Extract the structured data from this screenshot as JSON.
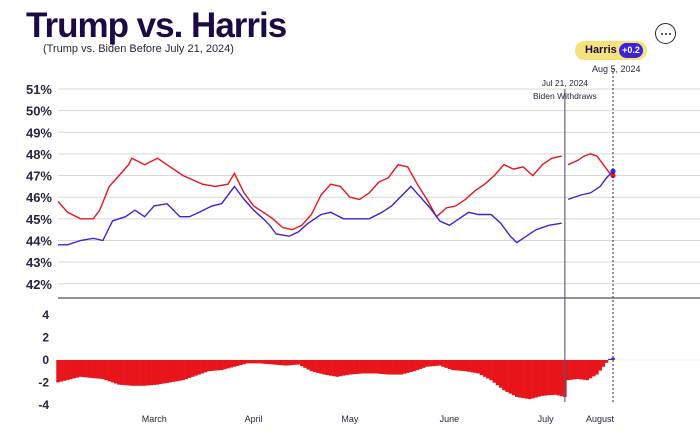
{
  "header": {
    "title": "Trump vs. Harris",
    "subtitle": "(Trump vs. Biden Before July 21, 2024)"
  },
  "badge": {
    "label": "Harris",
    "value": "+0.2",
    "date": "Aug 5, 2024"
  },
  "annotation": {
    "date": "Jul 21, 2024",
    "text": "Biden Withdraws"
  },
  "colors": {
    "trump": "#e8151b",
    "harris": "#3d22d8",
    "title": "#1b0a45",
    "badge_bg": "#f4e27a"
  },
  "icons": {
    "menu": "more-options-icon"
  },
  "chart_data": [
    {
      "type": "line",
      "ylim": [
        41.5,
        51
      ],
      "yticks": [
        "51%",
        "50%",
        "49%",
        "48%",
        "47%",
        "46%",
        "45%",
        "44%",
        "43%",
        "42%"
      ],
      "grid": true,
      "x_labels": [
        "March",
        "April",
        "May",
        "June",
        "July",
        "August"
      ],
      "x_start": "2024-02-14",
      "x_end": "2024-08-05",
      "series": [
        {
          "name": "Trump",
          "color": "#e8151b",
          "points": [
            [
              "2024-02-14",
              45.8
            ],
            [
              "2024-02-17",
              45.3
            ],
            [
              "2024-02-21",
              45.0
            ],
            [
              "2024-02-25",
              45.0
            ],
            [
              "2024-02-27",
              45.4
            ],
            [
              "2024-03-01",
              46.5
            ],
            [
              "2024-03-04",
              47.0
            ],
            [
              "2024-03-07",
              47.5
            ],
            [
              "2024-03-08",
              47.8
            ],
            [
              "2024-03-12",
              47.5
            ],
            [
              "2024-03-16",
              47.8
            ],
            [
              "2024-03-20",
              47.4
            ],
            [
              "2024-03-24",
              47.0
            ],
            [
              "2024-03-27",
              46.8
            ],
            [
              "2024-03-30",
              46.6
            ],
            [
              "2024-04-03",
              46.5
            ],
            [
              "2024-04-07",
              46.6
            ],
            [
              "2024-04-09",
              47.1
            ],
            [
              "2024-04-12",
              46.2
            ],
            [
              "2024-04-15",
              45.6
            ],
            [
              "2024-04-18",
              45.3
            ],
            [
              "2024-04-21",
              45.0
            ],
            [
              "2024-04-24",
              44.6
            ],
            [
              "2024-04-27",
              44.5
            ],
            [
              "2024-04-30",
              44.7
            ],
            [
              "2024-05-03",
              45.2
            ],
            [
              "2024-05-06",
              46.1
            ],
            [
              "2024-05-09",
              46.6
            ],
            [
              "2024-05-12",
              46.5
            ],
            [
              "2024-05-15",
              46.0
            ],
            [
              "2024-05-18",
              45.9
            ],
            [
              "2024-05-21",
              46.2
            ],
            [
              "2024-05-24",
              46.7
            ],
            [
              "2024-05-27",
              46.9
            ],
            [
              "2024-05-30",
              47.5
            ],
            [
              "2024-06-02",
              47.4
            ],
            [
              "2024-06-05",
              46.6
            ],
            [
              "2024-06-08",
              45.9
            ],
            [
              "2024-06-11",
              45.1
            ],
            [
              "2024-06-14",
              45.5
            ],
            [
              "2024-06-17",
              45.6
            ],
            [
              "2024-06-20",
              45.9
            ],
            [
              "2024-06-23",
              46.3
            ],
            [
              "2024-06-26",
              46.6
            ],
            [
              "2024-06-29",
              47.0
            ],
            [
              "2024-07-02",
              47.5
            ],
            [
              "2024-07-05",
              47.3
            ],
            [
              "2024-07-08",
              47.4
            ],
            [
              "2024-07-11",
              47.0
            ],
            [
              "2024-07-14",
              47.5
            ],
            [
              "2024-07-17",
              47.8
            ],
            [
              "2024-07-20",
              47.9
            ],
            [
              "2024-07-22",
              47.5
            ],
            [
              "2024-07-25",
              47.7
            ],
            [
              "2024-07-27",
              47.9
            ],
            [
              "2024-07-29",
              48.0
            ],
            [
              "2024-07-31",
              47.9
            ],
            [
              "2024-08-02",
              47.5
            ],
            [
              "2024-08-04",
              47.1
            ],
            [
              "2024-08-05",
              47.0
            ]
          ]
        },
        {
          "name": "Harris",
          "color": "#3d22d8",
          "points": [
            [
              "2024-02-14",
              43.8
            ],
            [
              "2024-02-17",
              43.8
            ],
            [
              "2024-02-21",
              44.0
            ],
            [
              "2024-02-25",
              44.1
            ],
            [
              "2024-02-28",
              44.0
            ],
            [
              "2024-03-02",
              44.9
            ],
            [
              "2024-03-06",
              45.1
            ],
            [
              "2024-03-09",
              45.4
            ],
            [
              "2024-03-12",
              45.1
            ],
            [
              "2024-03-15",
              45.6
            ],
            [
              "2024-03-19",
              45.7
            ],
            [
              "2024-03-23",
              45.1
            ],
            [
              "2024-03-26",
              45.1
            ],
            [
              "2024-03-29",
              45.3
            ],
            [
              "2024-04-02",
              45.6
            ],
            [
              "2024-04-05",
              45.7
            ],
            [
              "2024-04-09",
              46.5
            ],
            [
              "2024-04-12",
              45.9
            ],
            [
              "2024-04-15",
              45.4
            ],
            [
              "2024-04-18",
              45.0
            ],
            [
              "2024-04-20",
              44.7
            ],
            [
              "2024-04-22",
              44.3
            ],
            [
              "2024-04-26",
              44.2
            ],
            [
              "2024-04-29",
              44.4
            ],
            [
              "2024-05-02",
              44.8
            ],
            [
              "2024-05-06",
              45.2
            ],
            [
              "2024-05-09",
              45.3
            ],
            [
              "2024-05-13",
              45.0
            ],
            [
              "2024-05-17",
              45.0
            ],
            [
              "2024-05-21",
              45.0
            ],
            [
              "2024-05-25",
              45.3
            ],
            [
              "2024-05-28",
              45.6
            ],
            [
              "2024-06-01",
              46.2
            ],
            [
              "2024-06-03",
              46.5
            ],
            [
              "2024-06-06",
              46.0
            ],
            [
              "2024-06-09",
              45.5
            ],
            [
              "2024-06-12",
              44.9
            ],
            [
              "2024-06-15",
              44.7
            ],
            [
              "2024-06-18",
              45.0
            ],
            [
              "2024-06-21",
              45.3
            ],
            [
              "2024-06-24",
              45.2
            ],
            [
              "2024-06-28",
              45.2
            ],
            [
              "2024-07-01",
              44.8
            ],
            [
              "2024-07-04",
              44.2
            ],
            [
              "2024-07-06",
              43.9
            ],
            [
              "2024-07-09",
              44.2
            ],
            [
              "2024-07-12",
              44.5
            ],
            [
              "2024-07-16",
              44.7
            ],
            [
              "2024-07-20",
              44.8
            ],
            [
              "2024-07-22",
              45.9
            ],
            [
              "2024-07-26",
              46.1
            ],
            [
              "2024-07-29",
              46.2
            ],
            [
              "2024-08-01",
              46.5
            ],
            [
              "2024-08-03",
              46.9
            ],
            [
              "2024-08-05",
              47.2
            ]
          ]
        }
      ]
    },
    {
      "type": "bar",
      "ylim": [
        -4,
        5
      ],
      "yticks": [
        "4",
        "2",
        "0",
        "-2",
        "-4"
      ],
      "series": [
        {
          "name": "Harris margin",
          "points": [
            [
              "2024-02-14",
              -2.0
            ],
            [
              "2024-02-21",
              -1.5
            ],
            [
              "2024-02-28",
              -1.7
            ],
            [
              "2024-03-04",
              -2.2
            ],
            [
              "2024-03-08",
              -2.3
            ],
            [
              "2024-03-12",
              -2.3
            ],
            [
              "2024-03-16",
              -2.2
            ],
            [
              "2024-03-20",
              -2.0
            ],
            [
              "2024-03-24",
              -1.8
            ],
            [
              "2024-03-28",
              -1.4
            ],
            [
              "2024-04-01",
              -1.0
            ],
            [
              "2024-04-05",
              -0.9
            ],
            [
              "2024-04-09",
              -0.6
            ],
            [
              "2024-04-13",
              -0.3
            ],
            [
              "2024-04-17",
              -0.3
            ],
            [
              "2024-04-21",
              -0.4
            ],
            [
              "2024-04-25",
              -0.5
            ],
            [
              "2024-04-29",
              -0.4
            ],
            [
              "2024-05-03",
              -1.0
            ],
            [
              "2024-05-07",
              -1.3
            ],
            [
              "2024-05-11",
              -1.5
            ],
            [
              "2024-05-15",
              -1.3
            ],
            [
              "2024-05-19",
              -1.2
            ],
            [
              "2024-05-23",
              -1.2
            ],
            [
              "2024-05-27",
              -1.3
            ],
            [
              "2024-05-31",
              -1.3
            ],
            [
              "2024-06-04",
              -1.0
            ],
            [
              "2024-06-08",
              -0.6
            ],
            [
              "2024-06-12",
              -0.5
            ],
            [
              "2024-06-16",
              -0.9
            ],
            [
              "2024-06-20",
              -1.0
            ],
            [
              "2024-06-24",
              -1.2
            ],
            [
              "2024-06-28",
              -1.8
            ],
            [
              "2024-07-02",
              -2.7
            ],
            [
              "2024-07-06",
              -3.3
            ],
            [
              "2024-07-10",
              -3.5
            ],
            [
              "2024-07-14",
              -3.2
            ],
            [
              "2024-07-18",
              -3.1
            ],
            [
              "2024-07-21",
              -3.3
            ],
            [
              "2024-07-22",
              -1.8
            ],
            [
              "2024-07-25",
              -1.7
            ],
            [
              "2024-07-28",
              -1.8
            ],
            [
              "2024-07-31",
              -1.3
            ],
            [
              "2024-08-02",
              -0.6
            ],
            [
              "2024-08-04",
              0.1
            ],
            [
              "2024-08-05",
              0.2
            ]
          ]
        }
      ]
    }
  ]
}
